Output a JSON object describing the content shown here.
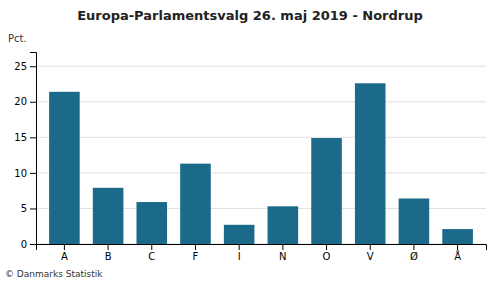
{
  "chart_data": {
    "type": "bar",
    "title": "Europa-Parlamentsvalg 26. maj 2019 - Nordrup",
    "ylabel": "Pct.",
    "footer": "© Danmarks Statistik",
    "categories": [
      "A",
      "B",
      "C",
      "F",
      "I",
      "N",
      "O",
      "V",
      "Ø",
      "Å"
    ],
    "values": [
      21.4,
      7.9,
      5.9,
      11.3,
      2.7,
      5.3,
      14.9,
      22.6,
      6.4,
      2.1
    ],
    "color": "#1b6a8a",
    "ylim": [
      0,
      27
    ],
    "yticks": [
      0,
      5,
      10,
      15,
      20,
      25
    ],
    "grid": true
  }
}
